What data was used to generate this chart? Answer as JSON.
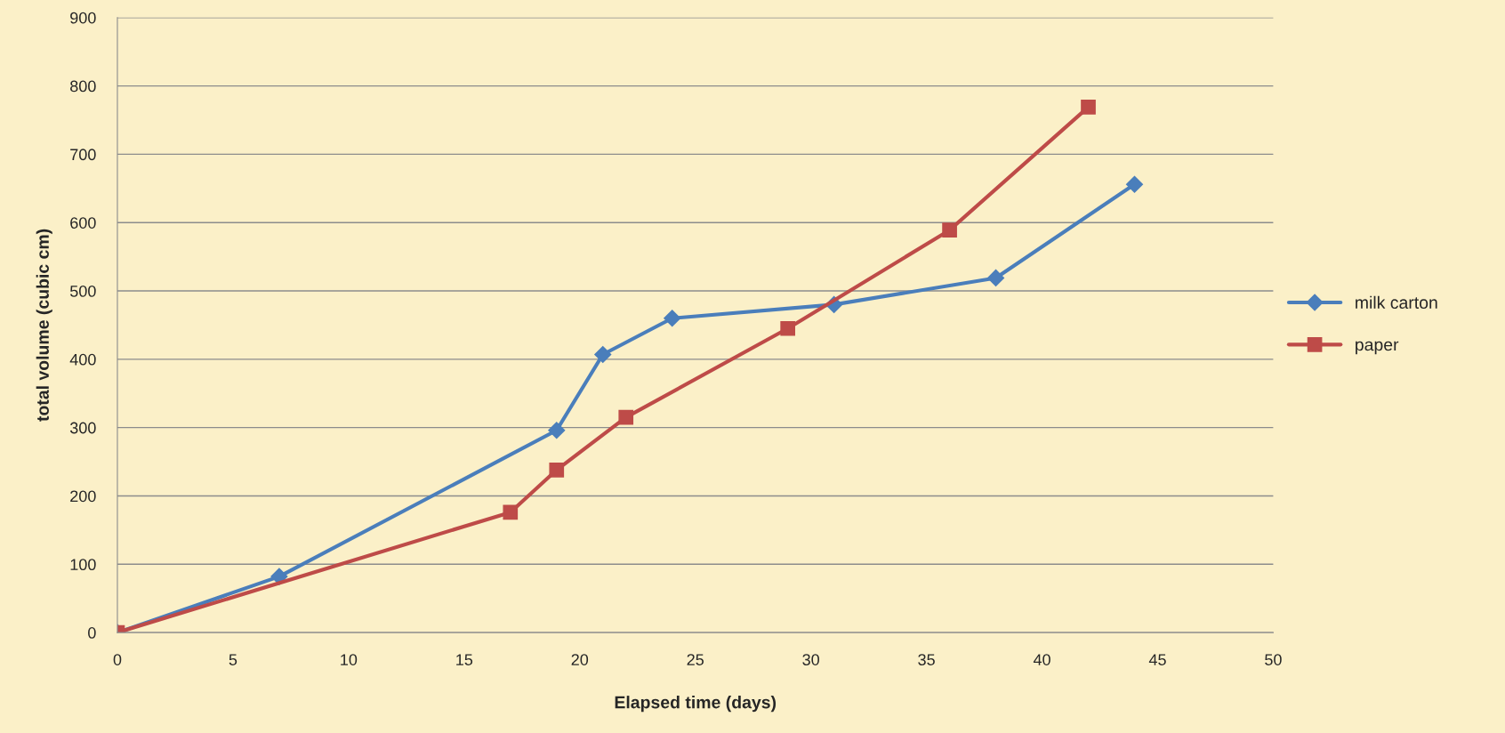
{
  "chart_data": {
    "type": "line",
    "xlabel": "Elapsed time (days)",
    "ylabel": "total volume (cubic cm)",
    "series": [
      {
        "name": "milk carton",
        "color": "#4a7ebb",
        "marker": "diamond",
        "x": [
          0,
          7,
          19,
          21,
          24,
          31,
          38,
          44
        ],
        "values": [
          0,
          82,
          296,
          407,
          460,
          480,
          519,
          656
        ]
      },
      {
        "name": "paper",
        "color": "#be4b48",
        "marker": "square",
        "x": [
          0,
          17,
          19,
          22,
          29,
          36,
          42
        ],
        "values": [
          0,
          176,
          238,
          315,
          445,
          589,
          769
        ]
      }
    ],
    "xlim": [
      0,
      50
    ],
    "xticks": [
      0,
      5,
      10,
      15,
      20,
      25,
      30,
      35,
      40,
      45,
      50
    ],
    "ylim": [
      0,
      900
    ],
    "yticks": [
      0,
      100,
      200,
      300,
      400,
      500,
      600,
      700,
      800,
      900
    ],
    "grid": "y",
    "legend": "right",
    "line_style": "solid"
  }
}
